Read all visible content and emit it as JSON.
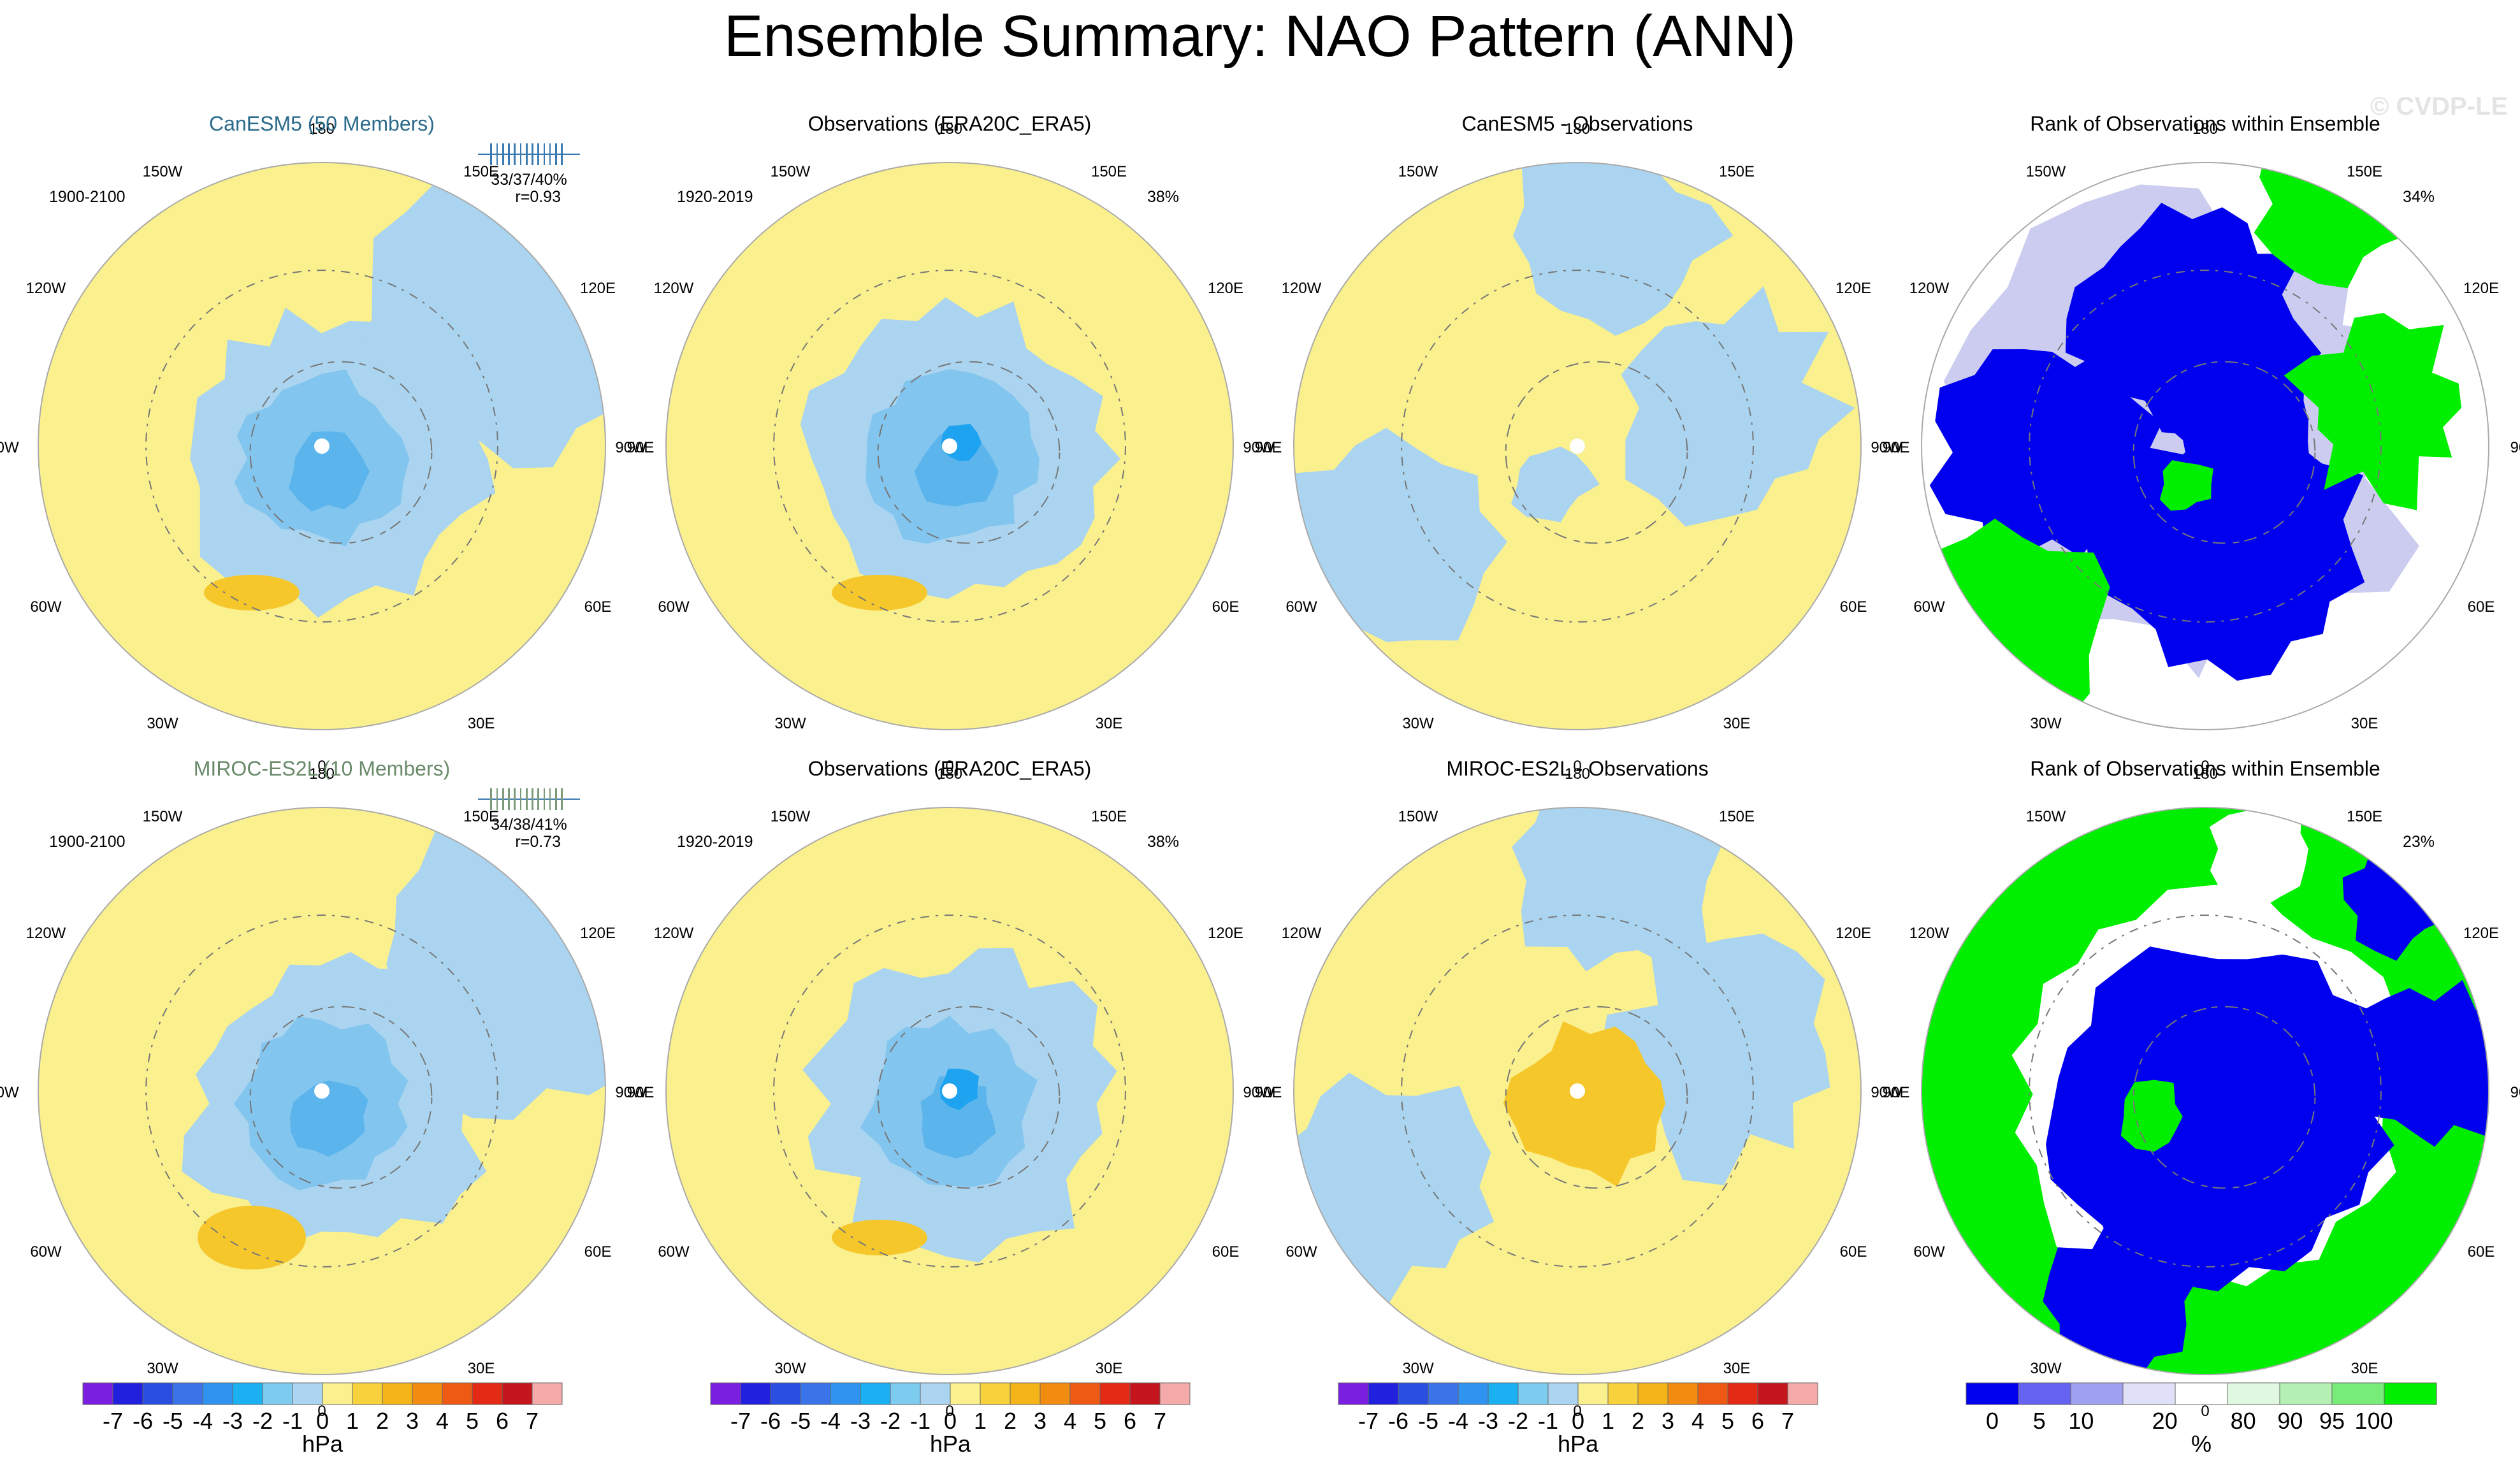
{
  "title": "Ensemble Summary: NAO Pattern (ANN)",
  "watermark": "© CVDP-LE",
  "colors": {
    "neg1": "#aad4ef",
    "neg2": "#82c5ef",
    "neg3": "#5bb5ec",
    "neg4": "#1ea3f0",
    "pos1": "#fbf08e",
    "pos2": "#f6c72b",
    "rank_blue": "#0000ee",
    "rank_green": "#00ee00",
    "rank_light": "#ccccf0",
    "model1_title": "#2a6a8a",
    "model2_title": "#6a8a6a",
    "coast": "#777777",
    "ocean_bg": "#aad4ef"
  },
  "panels": [
    {
      "title": "CanESM5 (50 Members)",
      "years": "1900-2100",
      "stats": "33/37/40%",
      "corr": "r=0.93",
      "kind": "model",
      "title_color": "#2a6a8a"
    },
    {
      "title": "Observations (ERA20C_ERA5)",
      "years": "1920-2019",
      "pct": "38%",
      "kind": "obs"
    },
    {
      "title": "CanESM5 - Observations",
      "kind": "diff"
    },
    {
      "title": "Rank of Observations within Ensemble",
      "pct": "34%",
      "kind": "rank"
    },
    {
      "title": "MIROC-ES2L (10 Members)",
      "years": "1900-2100",
      "stats": "34/38/41%",
      "corr": "r=0.73",
      "kind": "model",
      "title_color": "#6a8a6a"
    },
    {
      "title": "Observations (ERA20C_ERA5)",
      "years": "1920-2019",
      "pct": "38%",
      "kind": "obs"
    },
    {
      "title": "MIROC-ES2L - Observations",
      "kind": "diff"
    },
    {
      "title": "Rank of Observations within Ensemble",
      "pct": "23%",
      "kind": "rank"
    }
  ],
  "lon_labels": [
    "180",
    "150E",
    "120E",
    "90E",
    "60E",
    "30E",
    "0",
    "30W",
    "60W",
    "90W",
    "120W",
    "150W"
  ],
  "colorbar_hpa": {
    "labels": [
      "-7",
      "-6",
      "-5",
      "-4",
      "-3",
      "-2",
      "-1",
      "0",
      "1",
      "2",
      "3",
      "4",
      "5",
      "6",
      "7"
    ],
    "unit": "hPa",
    "colors": [
      "#7a1fe0",
      "#2020dd",
      "#2a4fe0",
      "#3a74e8",
      "#2f93ef",
      "#1ab0f2",
      "#7dcbee",
      "#aad4ef",
      "#fbf08e",
      "#f8d23c",
      "#f4b418",
      "#f28c10",
      "#ee5a14",
      "#e22a14",
      "#c4161c",
      "#f5aaaa"
    ]
  },
  "colorbar_rank": {
    "labels": [
      "0",
      "5",
      "10",
      "20",
      "80",
      "90",
      "95",
      "100"
    ],
    "unit": "%",
    "colors": [
      "#0000ee",
      "#6464f0",
      "#a0a0f0",
      "#e0e0f8",
      "#ffffff",
      "#e0f8e0",
      "#b4f0b4",
      "#78ec78",
      "#00ee00"
    ]
  },
  "chart_data": [
    {
      "type": "heatmap",
      "title": "CanESM5 (50 Members)",
      "period": "1900-2100",
      "units": "hPa",
      "annotation": "33/37/40%  r=0.93"
    },
    {
      "type": "heatmap",
      "title": "Observations (ERA20C_ERA5)",
      "period": "1920-2019",
      "units": "hPa",
      "annotation": "38%"
    },
    {
      "type": "heatmap",
      "title": "CanESM5 - Observations",
      "units": "hPa"
    },
    {
      "type": "heatmap",
      "title": "Rank of Observations within Ensemble",
      "units": "%",
      "annotation": "34%"
    },
    {
      "type": "heatmap",
      "title": "MIROC-ES2L (10 Members)",
      "period": "1900-2100",
      "units": "hPa",
      "annotation": "34/38/41%  r=0.73"
    },
    {
      "type": "heatmap",
      "title": "Observations (ERA20C_ERA5)",
      "period": "1920-2019",
      "units": "hPa",
      "annotation": "38%"
    },
    {
      "type": "heatmap",
      "title": "MIROC-ES2L - Observations",
      "units": "hPa"
    },
    {
      "type": "heatmap",
      "title": "Rank of Observations within Ensemble",
      "units": "%",
      "annotation": "23%"
    }
  ]
}
